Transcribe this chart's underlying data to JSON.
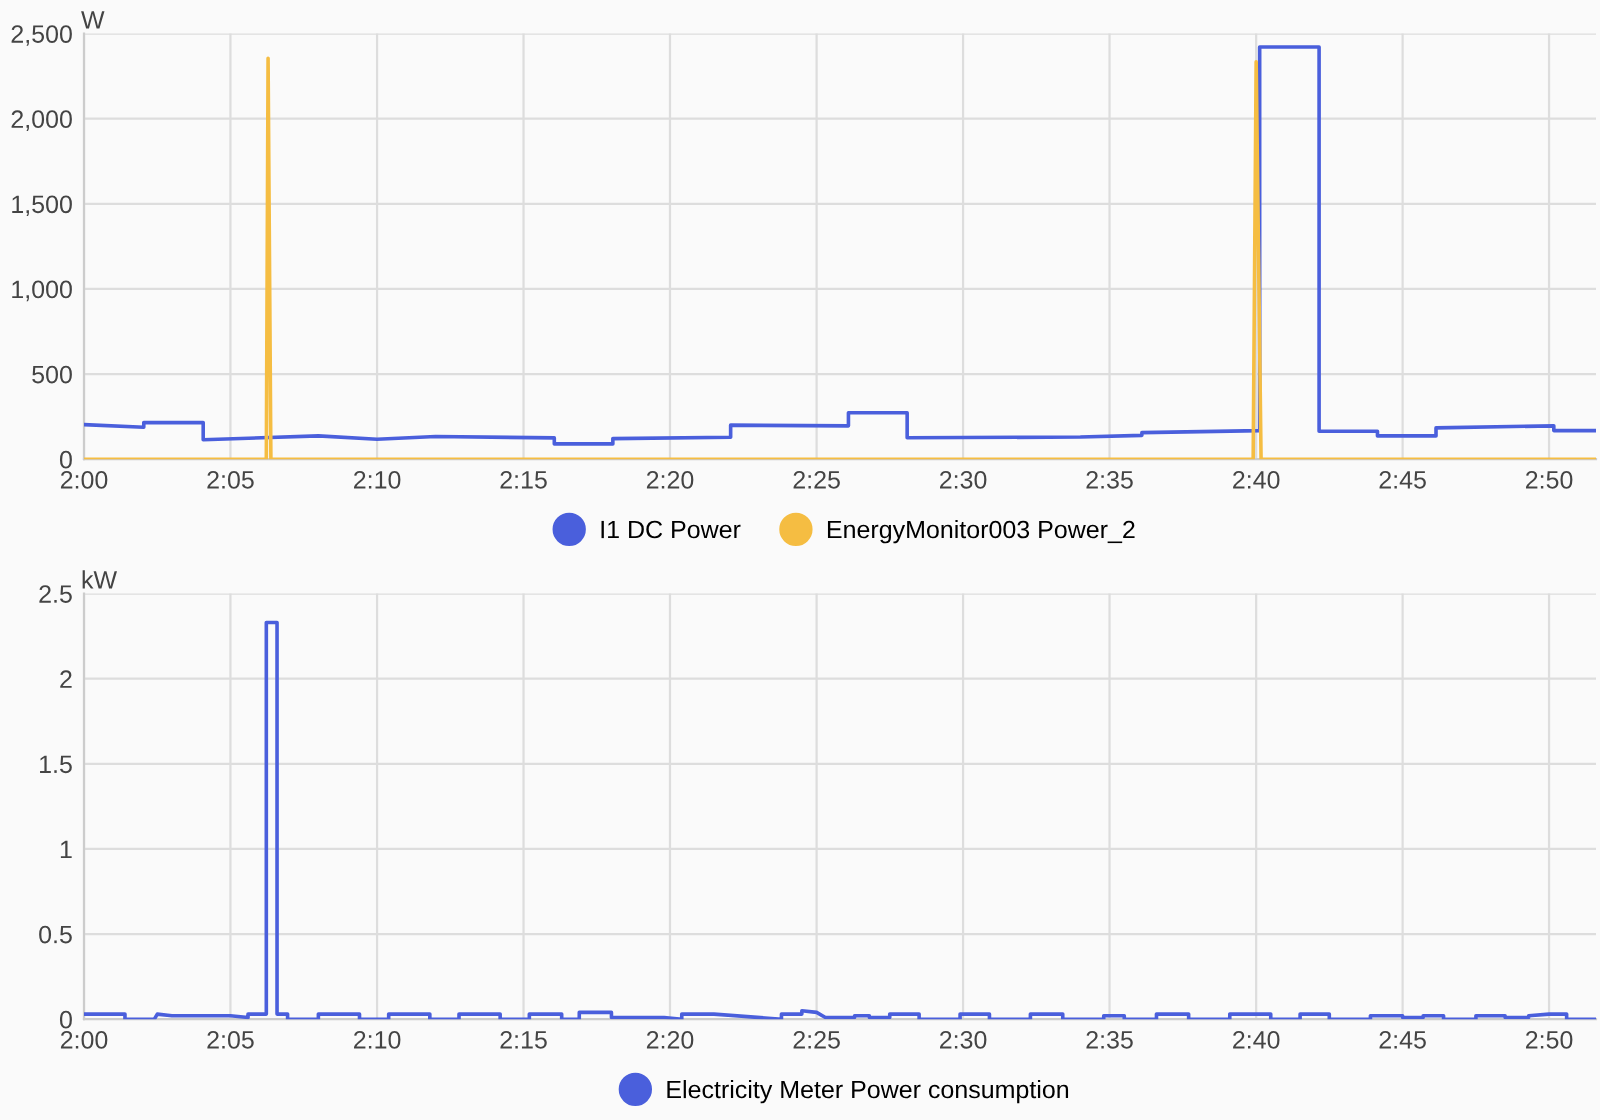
{
  "chart_data": [
    {
      "type": "line",
      "ylabel": "W",
      "xlim": [
        2.0,
        2.86
      ],
      "ylim": [
        0,
        2500
      ],
      "grid": true,
      "legend": "bottom",
      "marker": "none",
      "line_style": "solid",
      "xticks": [
        {
          "value": 2.0,
          "label": "2:00"
        },
        {
          "value": 2.0833,
          "label": "2:05"
        },
        {
          "value": 2.1667,
          "label": "2:10"
        },
        {
          "value": 2.25,
          "label": "2:15"
        },
        {
          "value": 2.3333,
          "label": "2:20"
        },
        {
          "value": 2.4167,
          "label": "2:25"
        },
        {
          "value": 2.5,
          "label": "2:30"
        },
        {
          "value": 2.5833,
          "label": "2:35"
        },
        {
          "value": 2.6667,
          "label": "2:40"
        },
        {
          "value": 2.75,
          "label": "2:45"
        },
        {
          "value": 2.8333,
          "label": "2:50"
        }
      ],
      "yticks": [
        0,
        500,
        {
          "value": 1000,
          "label": "1,000"
        },
        {
          "value": 1500,
          "label": "1,500"
        },
        {
          "value": 2000,
          "label": "2,000"
        },
        {
          "value": 2500,
          "label": "2,500"
        }
      ],
      "series": [
        {
          "name": "I1 DC Power",
          "color": "#4a5fdc",
          "x": [
            2.0,
            2.034,
            2.034,
            2.0678,
            2.0678,
            2.1333,
            2.1667,
            2.2,
            2.2675,
            2.2675,
            2.3008,
            2.3008,
            2.3678,
            2.3678,
            2.4348,
            2.4348,
            2.4682,
            2.4682,
            2.5667,
            2.6017,
            2.6017,
            2.6687,
            2.6687,
            2.7025,
            2.7025,
            2.7357,
            2.7357,
            2.769,
            2.769,
            2.836,
            2.836,
            2.86
          ],
          "values": [
            203,
            188,
            215,
            215,
            114,
            137,
            117,
            133,
            125,
            90,
            90,
            121,
            129,
            200,
            196,
            273,
            273,
            126,
            130,
            140,
            156,
            168,
            2421,
            2421,
            164,
            164,
            137,
            137,
            184,
            196,
            168,
            168
          ]
        },
        {
          "name": "EnergyMonitor003 Power_2",
          "color": "#f5bd42",
          "x": [
            2.0,
            2.1037,
            2.1047,
            2.1063,
            2.665,
            2.6667,
            2.6695,
            2.86
          ],
          "values": [
            0,
            0,
            2355,
            0,
            0,
            2335,
            0,
            0
          ]
        }
      ]
    },
    {
      "type": "line",
      "ylabel": "kW",
      "xlim": [
        2.0,
        2.86
      ],
      "ylim": [
        0,
        2.5
      ],
      "grid": true,
      "legend": "bottom",
      "marker": "none",
      "line_style": "solid",
      "xticks": [
        {
          "value": 2.0,
          "label": "2:00"
        },
        {
          "value": 2.0833,
          "label": "2:05"
        },
        {
          "value": 2.1667,
          "label": "2:10"
        },
        {
          "value": 2.25,
          "label": "2:15"
        },
        {
          "value": 2.3333,
          "label": "2:20"
        },
        {
          "value": 2.4167,
          "label": "2:25"
        },
        {
          "value": 2.5,
          "label": "2:30"
        },
        {
          "value": 2.5833,
          "label": "2:35"
        },
        {
          "value": 2.6667,
          "label": "2:40"
        },
        {
          "value": 2.75,
          "label": "2:45"
        },
        {
          "value": 2.8333,
          "label": "2:50"
        }
      ],
      "yticks": [
        0,
        0.5,
        1,
        1.5,
        2,
        2.5
      ],
      "series": [
        {
          "name": "Electricity Meter Power consumption",
          "color": "#4a5fdc",
          "x": [
            2.0,
            2.0233,
            2.0233,
            2.04,
            2.0417,
            2.05,
            2.0833,
            2.0933,
            2.0933,
            2.1037,
            2.1037,
            2.1098,
            2.1098,
            2.1158,
            2.1158,
            2.1333,
            2.1333,
            2.1567,
            2.1567,
            2.1733,
            2.1733,
            2.1967,
            2.1967,
            2.2133,
            2.2133,
            2.2367,
            2.2367,
            2.2533,
            2.2533,
            2.2717,
            2.2717,
            2.2817,
            2.2817,
            2.3,
            2.3,
            2.33,
            2.34,
            2.34,
            2.3583,
            2.3967,
            2.3967,
            2.4083,
            2.4083,
            2.4167,
            2.4217,
            2.4383,
            2.4383,
            2.4467,
            2.4467,
            2.4583,
            2.4583,
            2.475,
            2.475,
            2.4983,
            2.4983,
            2.515,
            2.515,
            2.5383,
            2.5383,
            2.5567,
            2.5567,
            2.58,
            2.58,
            2.5917,
            2.5917,
            2.61,
            2.61,
            2.6283,
            2.6283,
            2.6517,
            2.6517,
            2.675,
            2.675,
            2.6917,
            2.6917,
            2.7083,
            2.7083,
            2.7317,
            2.7317,
            2.75,
            2.75,
            2.7617,
            2.7617,
            2.7733,
            2.7733,
            2.7917,
            2.7917,
            2.8083,
            2.8083,
            2.8217,
            2.8217,
            2.8333,
            2.8433,
            2.8433,
            2.86
          ],
          "values": [
            0.03,
            0.03,
            0,
            0,
            0.03,
            0.02,
            0.02,
            0.01,
            0.03,
            0.03,
            2.33,
            2.33,
            0.03,
            0.03,
            0,
            0,
            0.03,
            0.03,
            0,
            0,
            0.03,
            0.03,
            0,
            0,
            0.03,
            0.03,
            0,
            0,
            0.03,
            0.03,
            0,
            0,
            0.04,
            0.04,
            0.01,
            0.01,
            0,
            0.03,
            0.03,
            0,
            0.03,
            0.03,
            0.05,
            0.04,
            0.01,
            0.01,
            0.02,
            0.02,
            0.01,
            0.01,
            0.03,
            0.03,
            0,
            0,
            0.03,
            0.03,
            0,
            0,
            0.03,
            0.03,
            0,
            0,
            0.02,
            0.02,
            0,
            0,
            0.03,
            0.03,
            0,
            0,
            0.03,
            0.03,
            0,
            0,
            0.03,
            0.03,
            0,
            0,
            0.02,
            0.02,
            0.01,
            0.01,
            0.02,
            0.02,
            0,
            0,
            0.02,
            0.02,
            0.01,
            0.01,
            0.02,
            0.03,
            0.03,
            0,
            0
          ]
        }
      ]
    }
  ]
}
